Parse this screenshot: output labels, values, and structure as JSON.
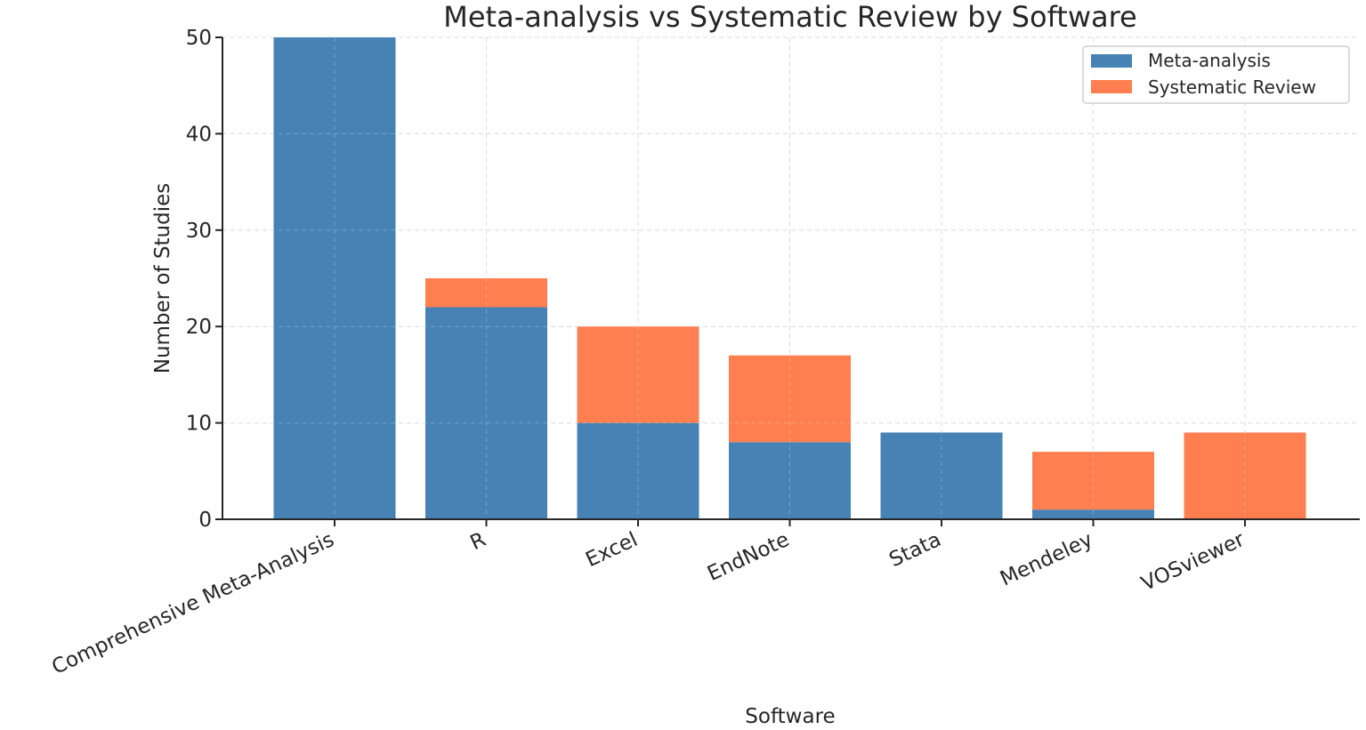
{
  "chart_data": {
    "type": "bar",
    "stacked": true,
    "title": "Meta-analysis vs Systematic Review by Software",
    "xlabel": "Software",
    "ylabel": "Number of Studies",
    "categories": [
      "Comprehensive Meta-Analysis",
      "R",
      "Excel",
      "EndNote",
      "Stata",
      "Mendeley",
      "VOSviewer"
    ],
    "series": [
      {
        "name": "Meta-analysis",
        "color": "#4682b4",
        "values": [
          50,
          22,
          10,
          8,
          9,
          1,
          0
        ]
      },
      {
        "name": "Systematic Review",
        "color": "#ff7f50",
        "values": [
          0,
          3,
          10,
          9,
          0,
          6,
          9
        ]
      }
    ],
    "ylim": [
      0,
      50
    ],
    "yticks": [
      0,
      10,
      20,
      30,
      40,
      50
    ],
    "grid": true,
    "legend_position": "top-right"
  }
}
